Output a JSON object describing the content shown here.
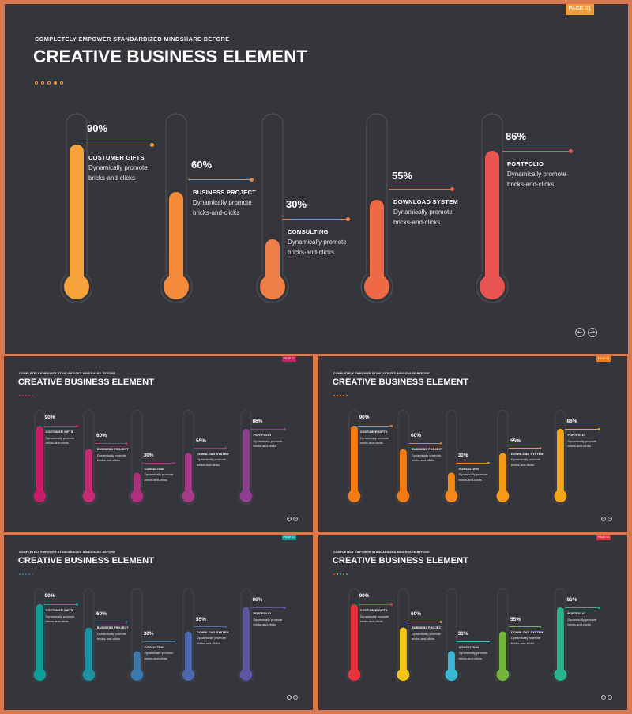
{
  "subtitle": "COMPLETELY EMPOWER STANDARDIZED MINDSHARE BEFORE",
  "title": "CREATIVE BUSINESS ELEMENT",
  "page_tag": "PAGE 01",
  "nav": {
    "prev_icon": "←",
    "next_icon": "→"
  },
  "items": [
    {
      "percent": "90%",
      "value": 0.9,
      "label": "COSTUMER GIFTS",
      "desc1": "Dynamically promote",
      "desc2": "bricks-and-clicks"
    },
    {
      "percent": "60%",
      "value": 0.6,
      "label": "BUSINESS PROJECT",
      "desc1": "Dynamically promote",
      "desc2": "bricks-and-clicks"
    },
    {
      "percent": "30%",
      "value": 0.3,
      "label": "CONSULTING",
      "desc1": "Dynamically promote",
      "desc2": "bricks-and-clicks"
    },
    {
      "percent": "55%",
      "value": 0.55,
      "label": "DOWNLOAD SYSTEM",
      "desc1": "Dynamically promote",
      "desc2": "bricks-and-clicks"
    },
    {
      "percent": "86%",
      "value": 0.86,
      "label": "PORTFOLIO",
      "desc1": "Dynamically promote",
      "desc2": "bricks-and-clicks"
    }
  ],
  "variants": [
    {
      "tag_color": "#f29c3a",
      "dot_colors": [
        "#f29c3a",
        "#f29c3a",
        "#f29c3a",
        "#f29c3a",
        "#f29c3a"
      ],
      "colors": [
        "#f7a23b",
        "#f48c3c",
        "#ef7e47",
        "#ee6a45",
        "#ea5452"
      ]
    },
    {
      "tag_color": "#c6245f",
      "dot_colors": [
        "#c6245f",
        "#c6245f",
        "#c6245f",
        "#c6245f",
        "#c6245f"
      ],
      "colors": [
        "#c91c68",
        "#c62a73",
        "#ae2f7e",
        "#a53a86",
        "#8e3f92"
      ]
    },
    {
      "tag_color": "#f07b14",
      "dot_colors": [
        "#f07b14",
        "#f07b14",
        "#f07b14",
        "#f07b14",
        "#f07b14"
      ],
      "colors": [
        "#f47a12",
        "#f47a12",
        "#f48a14",
        "#f49a16",
        "#f4a618"
      ]
    },
    {
      "tag_color": "#11a09a",
      "dot_colors": [
        "#11a09a",
        "#11a09a",
        "#3b78ad",
        "#4e66ad",
        "#5d56a4"
      ],
      "colors": [
        "#0f9c98",
        "#1b91a4",
        "#3b78ad",
        "#4e66ad",
        "#5d56a4"
      ]
    },
    {
      "tag_color": "#e8323c",
      "dot_colors": [
        "#e8323c",
        "#f5c518",
        "#3bb8d6",
        "#73b63a",
        "#27b38c"
      ],
      "colors": [
        "#e8323c",
        "#f5c518",
        "#3bb8d6",
        "#73b63a",
        "#27b38c"
      ]
    }
  ]
}
